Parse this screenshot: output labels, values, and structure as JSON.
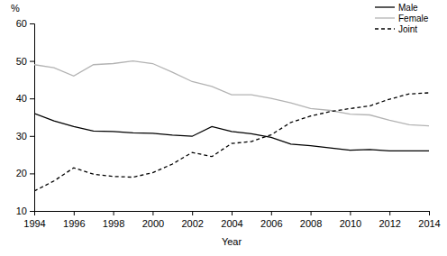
{
  "chart_data": {
    "type": "line",
    "y_label": "%",
    "x_label": "Year",
    "x": [
      1994,
      1995,
      1996,
      1997,
      1998,
      1999,
      2000,
      2001,
      2002,
      2003,
      2004,
      2005,
      2006,
      2007,
      2008,
      2009,
      2010,
      2011,
      2012,
      2013,
      2014
    ],
    "series": [
      {
        "name": "Male",
        "color": "#000000",
        "line_style": "solid",
        "values": [
          36,
          34,
          32.5,
          31.3,
          31.2,
          30.8,
          30.7,
          30.2,
          29.9,
          32.5,
          31.2,
          30.6,
          29.6,
          27.8,
          27.4,
          26.8,
          26.2,
          26.4,
          26,
          26,
          26
        ]
      },
      {
        "name": "Female",
        "color": "#b3b3b3",
        "line_style": "solid",
        "values": [
          49,
          48.2,
          46,
          49,
          49.3,
          50,
          49.3,
          47,
          44.5,
          43.2,
          41,
          41,
          40,
          38.8,
          37.3,
          36.8,
          35.8,
          35.6,
          34.2,
          33,
          32.7
        ]
      },
      {
        "name": "Joint",
        "color": "#000000",
        "line_style": "dashed",
        "values": [
          15.3,
          18,
          21.5,
          19.8,
          19.2,
          19,
          20.2,
          22.5,
          25.6,
          24.5,
          28,
          28.5,
          30.3,
          33.6,
          35.3,
          36.5,
          37.3,
          38,
          39.8,
          41.2,
          41.5
        ]
      }
    ],
    "xlim": [
      1994,
      2014
    ],
    "xticks": [
      1994,
      1996,
      1998,
      2000,
      2002,
      2004,
      2006,
      2008,
      2010,
      2012,
      2014
    ],
    "ylim": [
      10,
      60
    ],
    "yticks": [
      10,
      20,
      30,
      40,
      50,
      60
    ],
    "grid": false,
    "legend": "upper right"
  }
}
